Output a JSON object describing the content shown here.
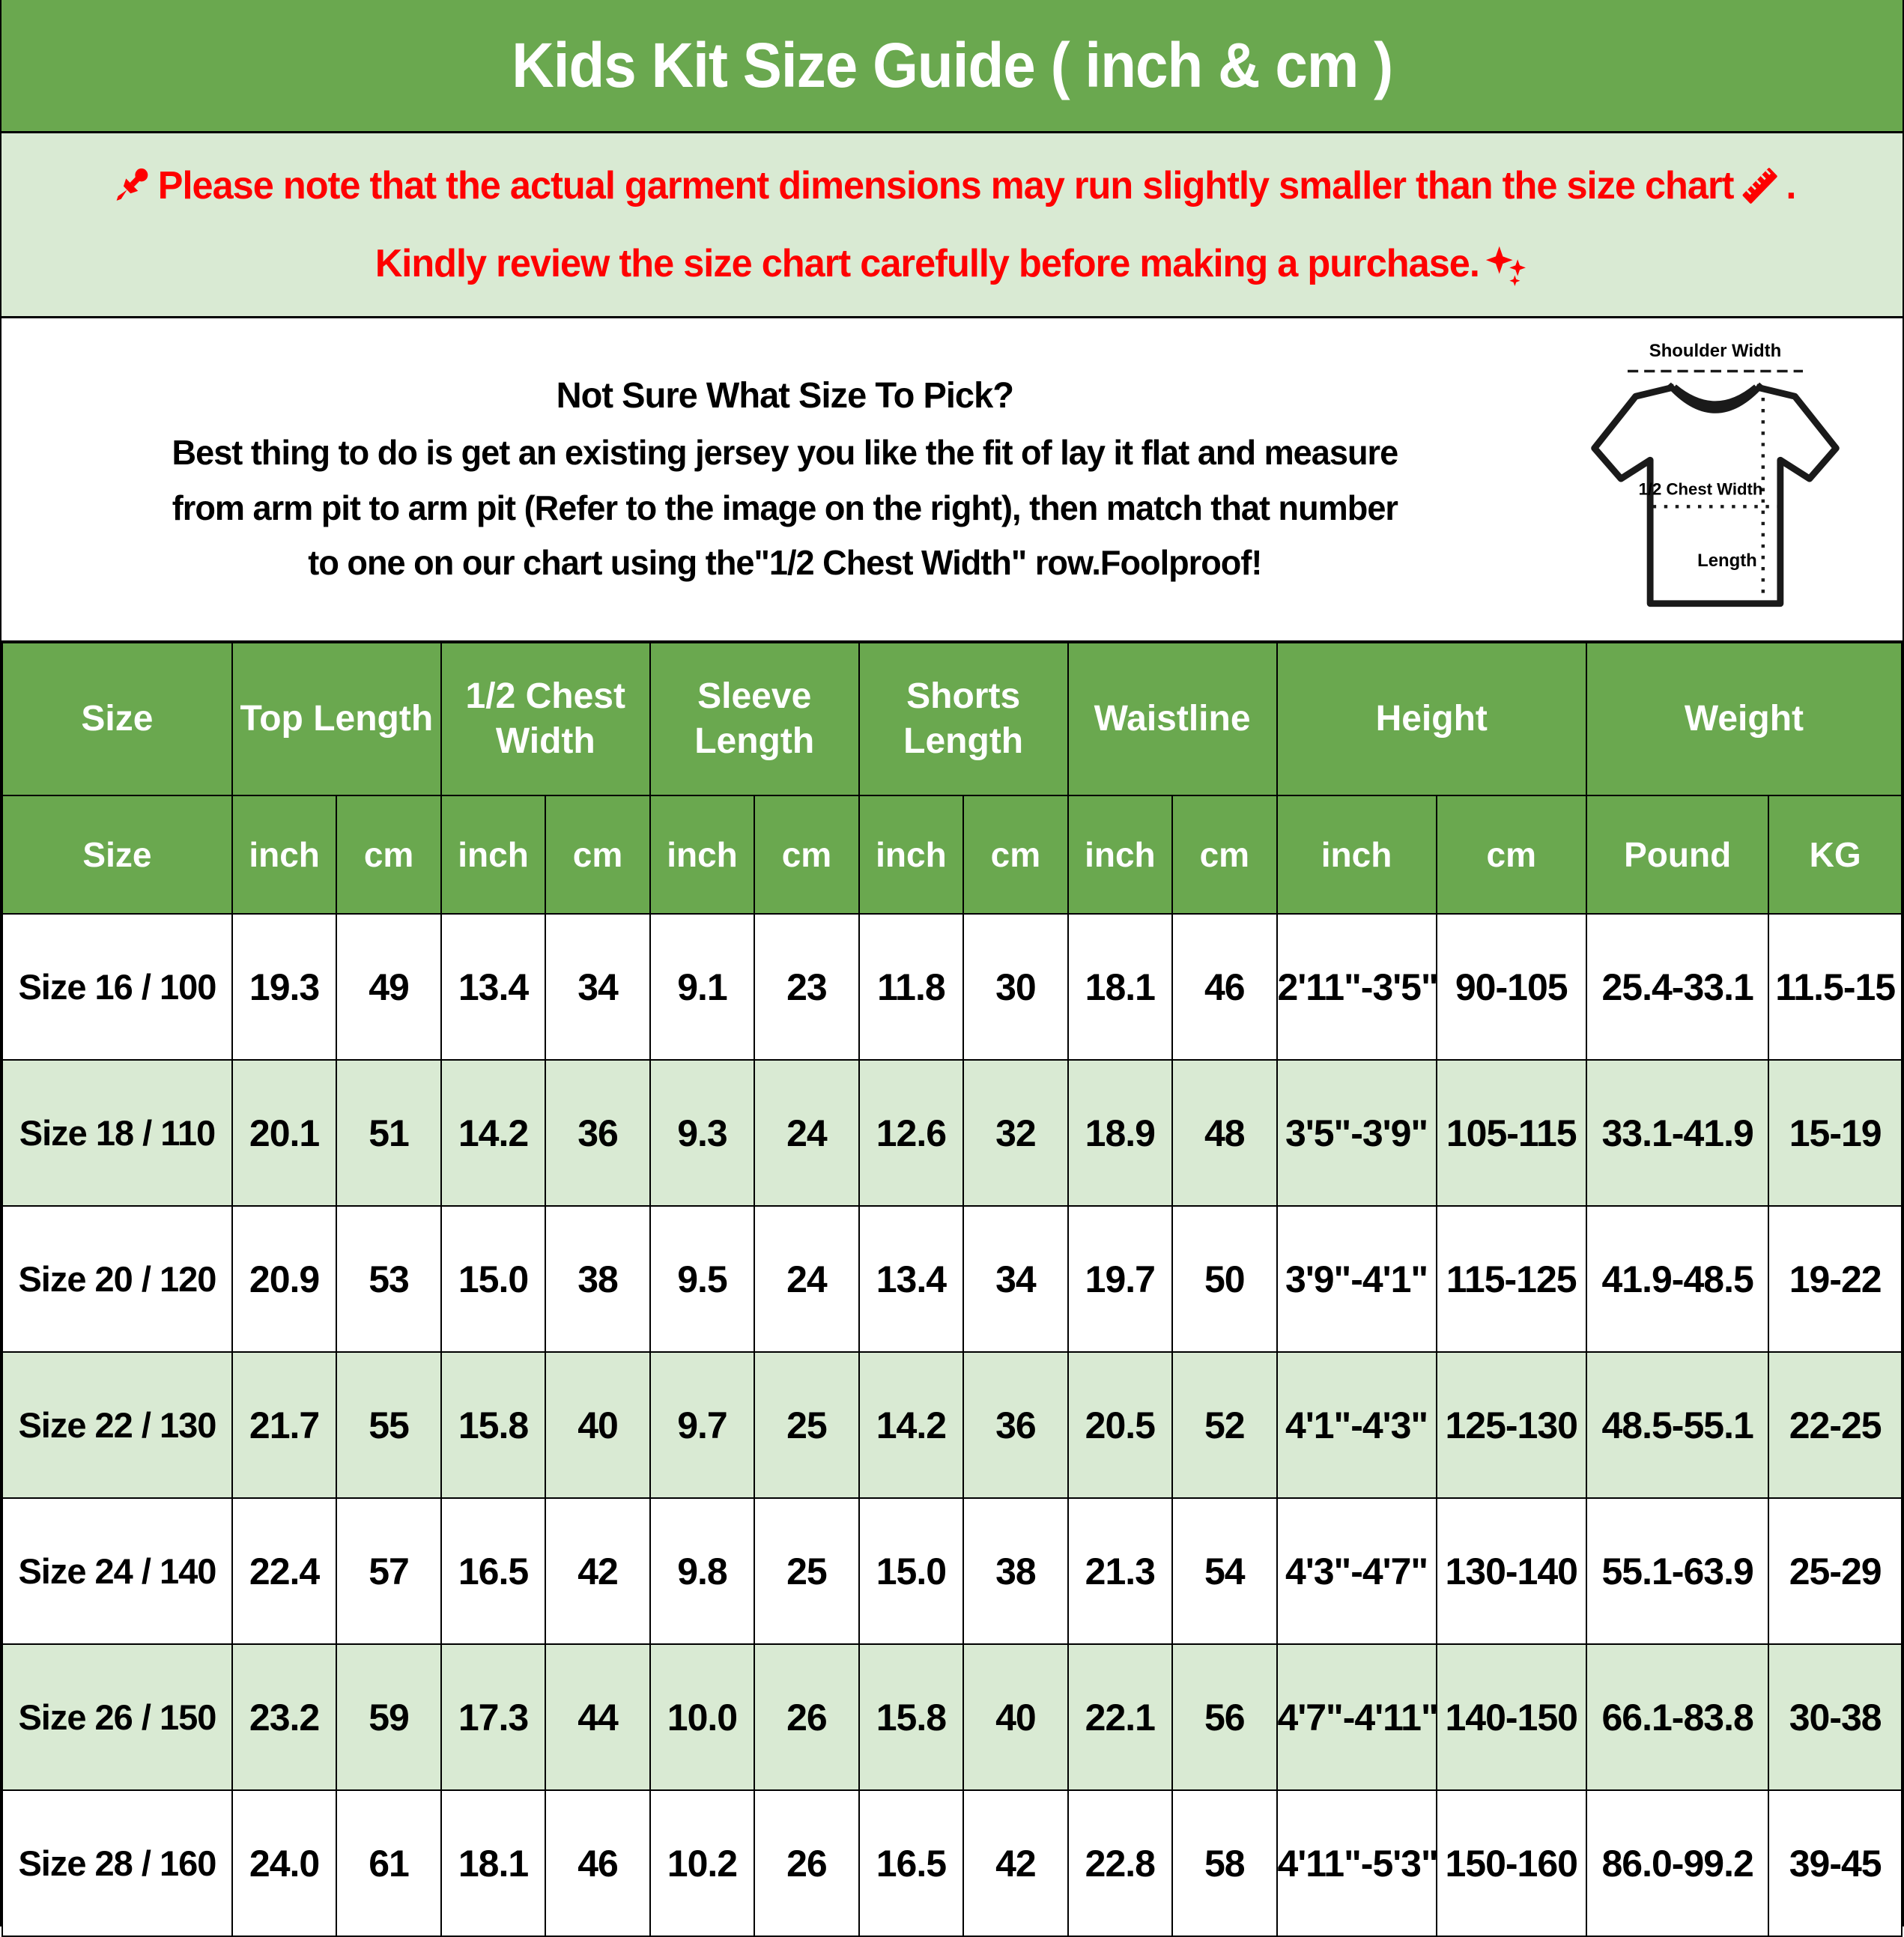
{
  "header": {
    "title": "Kids Kit Size Guide ( inch & cm )"
  },
  "colors": {
    "header_green": "#6aa84f",
    "light_green": "#d9ead3",
    "notice_red": "#fe0000"
  },
  "notice": {
    "pin_icon": "pushpin-icon",
    "line1": "Please note that the actual garment dimensions may run slightly smaller than the size chart",
    "ruler_icon": "ruler-icon",
    "line1_end": ".",
    "line2": "Kindly review the size chart carefully before making a purchase.",
    "sparkle_icon": "sparkles-icon"
  },
  "info": {
    "heading": "Not Sure What Size To Pick?",
    "line1": "Best thing to do is get an existing jersey you like the fit of lay it flat and measure",
    "line2": "from arm pit to arm pit (Refer to the image on the right), then match that number",
    "line3": "to one on our chart using the\"1/2 Chest Width\" row.Foolproof!"
  },
  "diagram": {
    "shoulder_label": "Shoulder Width",
    "chest_label": "1/2 Chest Width",
    "length_label": "Length"
  },
  "table": {
    "groups": [
      {
        "label": "Size"
      },
      {
        "label": "Top Length"
      },
      {
        "label": "1/2 Chest Width"
      },
      {
        "label": "Sleeve Length"
      },
      {
        "label": "Shorts Length"
      },
      {
        "label": "Waistline"
      },
      {
        "label": "Height"
      },
      {
        "label": "Weight"
      }
    ],
    "subheaders": [
      "Size",
      "inch",
      "cm",
      "inch",
      "cm",
      "inch",
      "cm",
      "inch",
      "cm",
      "inch",
      "cm",
      "inch",
      "cm",
      "Pound",
      "KG"
    ],
    "rows": [
      [
        "Size 16 / 100",
        "19.3",
        "49",
        "13.4",
        "34",
        "9.1",
        "23",
        "11.8",
        "30",
        "18.1",
        "46",
        "2'11\"-3'5\"",
        "90-105",
        "25.4-33.1",
        "11.5-15"
      ],
      [
        "Size 18 / 110",
        "20.1",
        "51",
        "14.2",
        "36",
        "9.3",
        "24",
        "12.6",
        "32",
        "18.9",
        "48",
        "3'5\"-3'9\"",
        "105-115",
        "33.1-41.9",
        "15-19"
      ],
      [
        "Size 20 / 120",
        "20.9",
        "53",
        "15.0",
        "38",
        "9.5",
        "24",
        "13.4",
        "34",
        "19.7",
        "50",
        "3'9\"-4'1\"",
        "115-125",
        "41.9-48.5",
        "19-22"
      ],
      [
        "Size 22 / 130",
        "21.7",
        "55",
        "15.8",
        "40",
        "9.7",
        "25",
        "14.2",
        "36",
        "20.5",
        "52",
        "4'1\"-4'3\"",
        "125-130",
        "48.5-55.1",
        "22-25"
      ],
      [
        "Size 24 / 140",
        "22.4",
        "57",
        "16.5",
        "42",
        "9.8",
        "25",
        "15.0",
        "38",
        "21.3",
        "54",
        "4'3\"-4'7\"",
        "130-140",
        "55.1-63.9",
        "25-29"
      ],
      [
        "Size 26 / 150",
        "23.2",
        "59",
        "17.3",
        "44",
        "10.0",
        "26",
        "15.8",
        "40",
        "22.1",
        "56",
        "4'7\"-4'11\"",
        "140-150",
        "66.1-83.8",
        "30-38"
      ],
      [
        "Size 28 / 160",
        "24.0",
        "61",
        "18.1",
        "46",
        "10.2",
        "26",
        "16.5",
        "42",
        "22.8",
        "58",
        "4'11\"-5'3\"",
        "150-160",
        "86.0-99.2",
        "39-45"
      ]
    ]
  },
  "chart_data": {
    "type": "table",
    "title": "Kids Kit Size Guide ( inch & cm )",
    "columns": [
      "Size",
      "Top Length inch",
      "Top Length cm",
      "1/2 Chest Width inch",
      "1/2 Chest Width cm",
      "Sleeve Length inch",
      "Sleeve Length cm",
      "Shorts Length inch",
      "Shorts Length cm",
      "Waistline inch",
      "Waistline cm",
      "Height inch",
      "Height cm",
      "Weight Pound",
      "Weight KG"
    ],
    "rows": [
      [
        "Size 16 / 100",
        "19.3",
        "49",
        "13.4",
        "34",
        "9.1",
        "23",
        "11.8",
        "30",
        "18.1",
        "46",
        "2'11\"-3'5\"",
        "90-105",
        "25.4-33.1",
        "11.5-15"
      ],
      [
        "Size 18 / 110",
        "20.1",
        "51",
        "14.2",
        "36",
        "9.3",
        "24",
        "12.6",
        "32",
        "18.9",
        "48",
        "3'5\"-3'9\"",
        "105-115",
        "33.1-41.9",
        "15-19"
      ],
      [
        "Size 20 / 120",
        "20.9",
        "53",
        "15.0",
        "38",
        "9.5",
        "24",
        "13.4",
        "34",
        "19.7",
        "50",
        "3'9\"-4'1\"",
        "115-125",
        "41.9-48.5",
        "19-22"
      ],
      [
        "Size 22 / 130",
        "21.7",
        "55",
        "15.8",
        "40",
        "9.7",
        "25",
        "14.2",
        "36",
        "20.5",
        "52",
        "4'1\"-4'3\"",
        "125-130",
        "48.5-55.1",
        "22-25"
      ],
      [
        "Size 24 / 140",
        "22.4",
        "57",
        "16.5",
        "42",
        "9.8",
        "25",
        "15.0",
        "38",
        "21.3",
        "54",
        "4'3\"-4'7\"",
        "130-140",
        "55.1-63.9",
        "25-29"
      ],
      [
        "Size 26 / 150",
        "23.2",
        "59",
        "17.3",
        "44",
        "10.0",
        "26",
        "15.8",
        "40",
        "22.1",
        "56",
        "4'7\"-4'11\"",
        "140-150",
        "66.1-83.8",
        "30-38"
      ],
      [
        "Size 28 / 160",
        "24.0",
        "61",
        "18.1",
        "46",
        "10.2",
        "26",
        "16.5",
        "42",
        "22.8",
        "58",
        "4'11\"-5'3\"",
        "150-160",
        "86.0-99.2",
        "39-45"
      ]
    ]
  }
}
